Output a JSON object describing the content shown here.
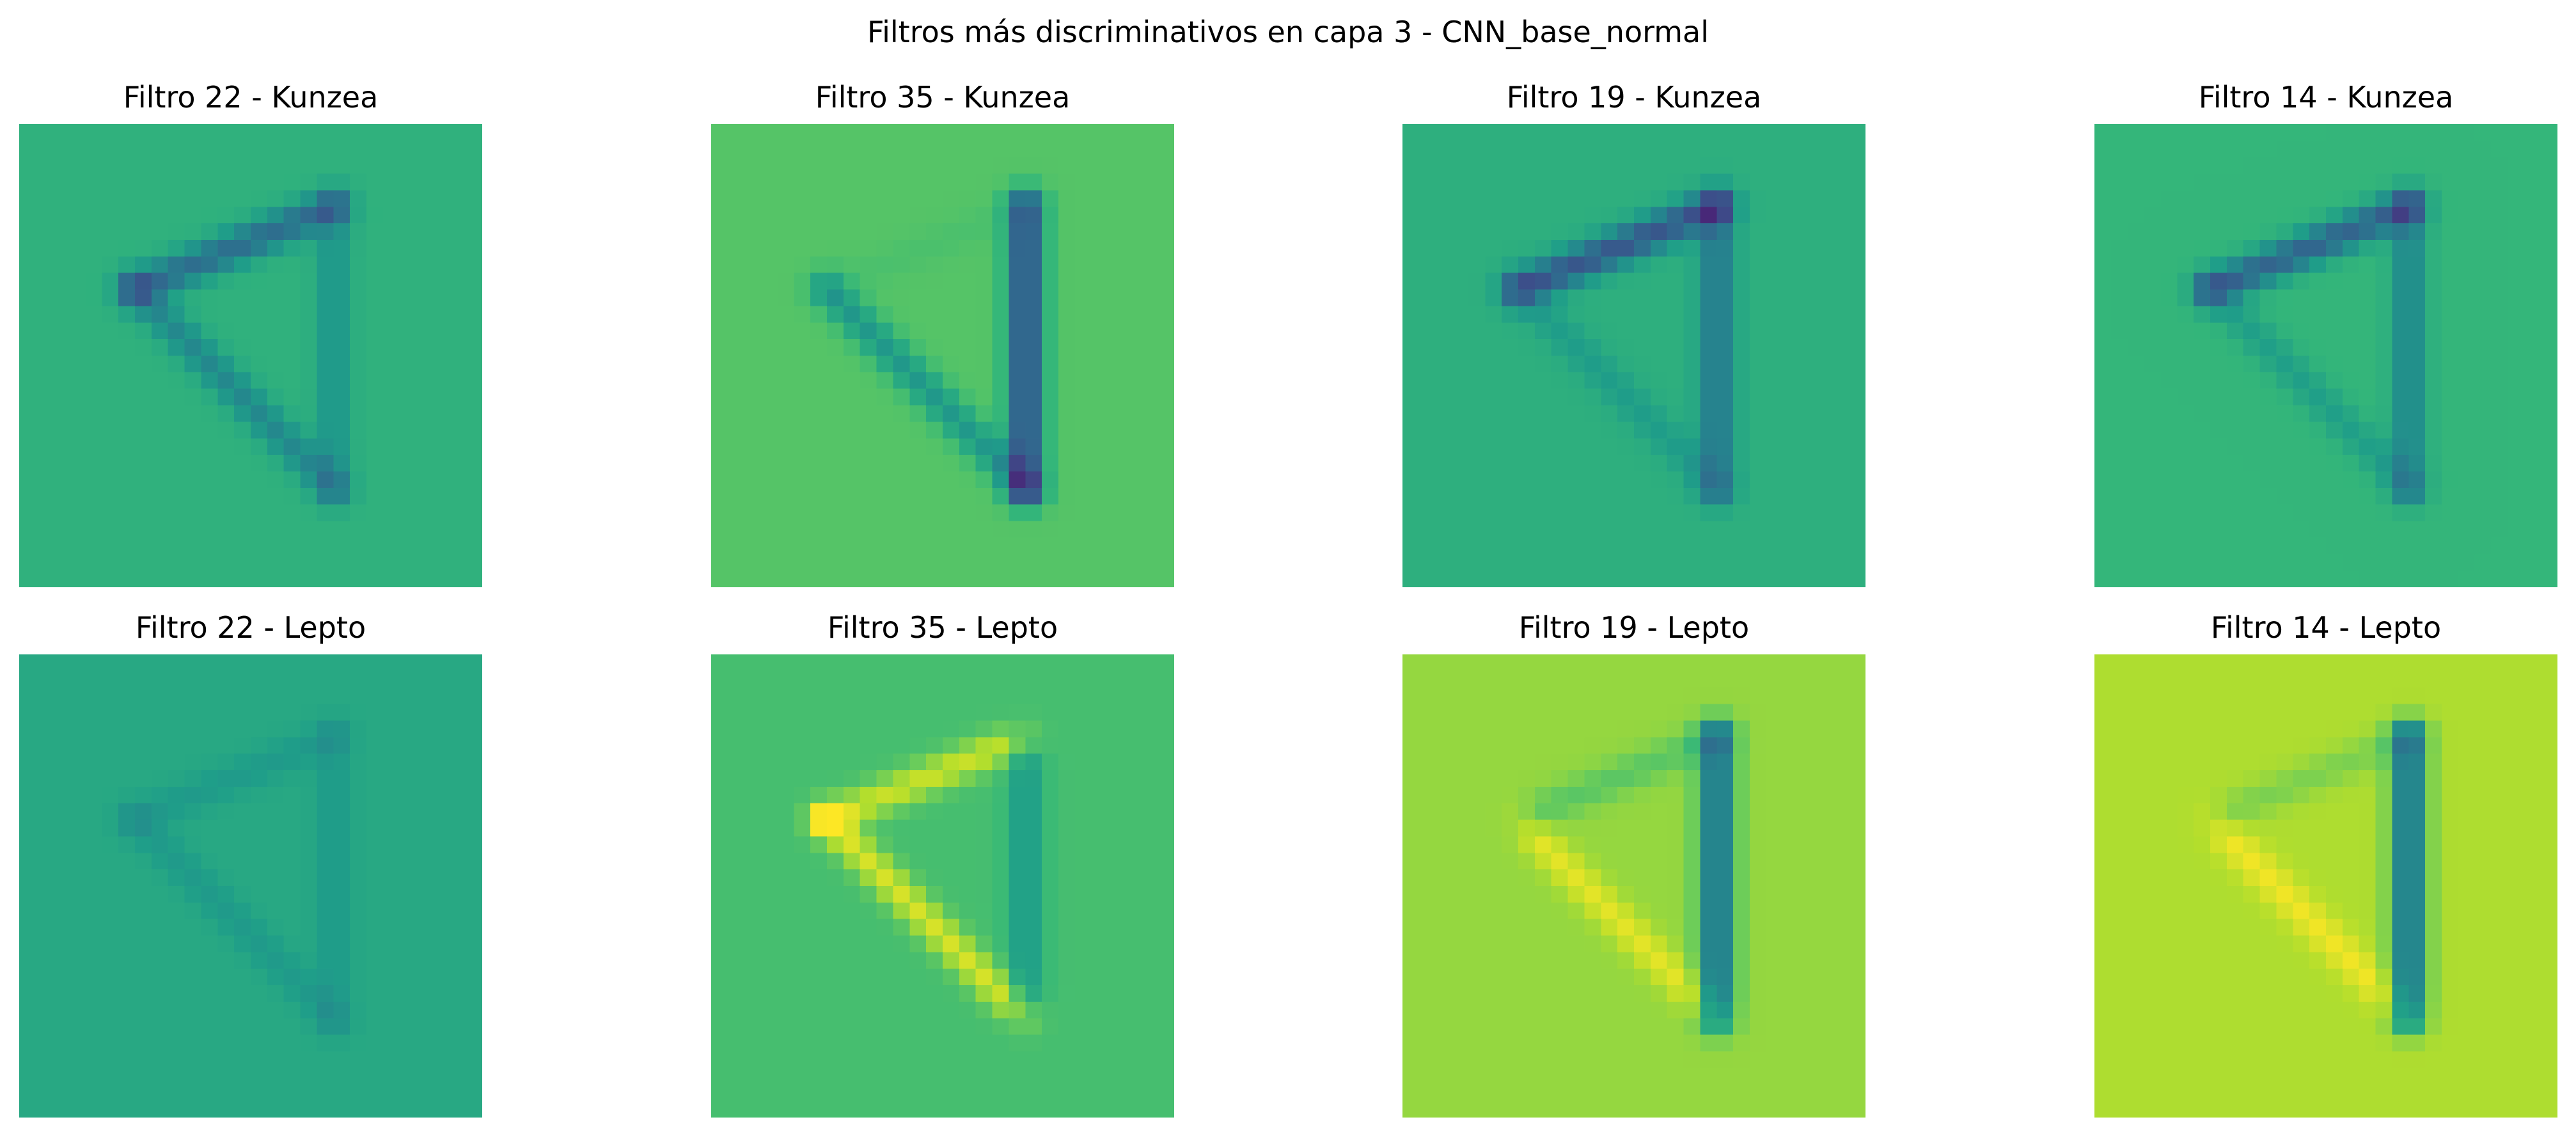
{
  "figure": {
    "title": "Filtros más discriminativos en capa 3 - CNN_base_normal"
  },
  "chart_data": [
    {
      "type": "heatmap",
      "title": "Filtro 22 - Kunzea",
      "filter": 22,
      "species": "Kunzea",
      "background": "#48c16e",
      "grid": false,
      "axes": "off"
    },
    {
      "type": "heatmap",
      "title": "Filtro 35 - Kunzea",
      "filter": 35,
      "species": "Kunzea",
      "background": "#6ccd5a",
      "grid": false,
      "axes": "off"
    },
    {
      "type": "heatmap",
      "title": "Filtro 19 - Kunzea",
      "filter": 19,
      "species": "Kunzea",
      "background": "#4ac16d",
      "grid": false,
      "axes": "off"
    },
    {
      "type": "heatmap",
      "title": "Filtro 14 - Kunzea",
      "filter": 14,
      "species": "Kunzea",
      "background": "#54c568",
      "grid": false,
      "axes": "off"
    },
    {
      "type": "heatmap",
      "title": "Filtro 22 - Lepto",
      "filter": 22,
      "species": "Lepto",
      "background": "#3bbb75",
      "grid": false,
      "axes": "off"
    },
    {
      "type": "heatmap",
      "title": "Filtro 35 - Lepto",
      "filter": 35,
      "species": "Lepto",
      "background": "#5ec962",
      "grid": false,
      "axes": "off"
    },
    {
      "type": "heatmap",
      "title": "Filtro 19 - Lepto",
      "filter": 19,
      "species": "Lepto",
      "background": "#a0da39",
      "grid": false,
      "axes": "off"
    },
    {
      "type": "heatmap",
      "title": "Filtro 14 - Lepto",
      "filter": 14,
      "species": "Lepto",
      "background": "#b5de2b",
      "grid": false,
      "axes": "off"
    }
  ]
}
